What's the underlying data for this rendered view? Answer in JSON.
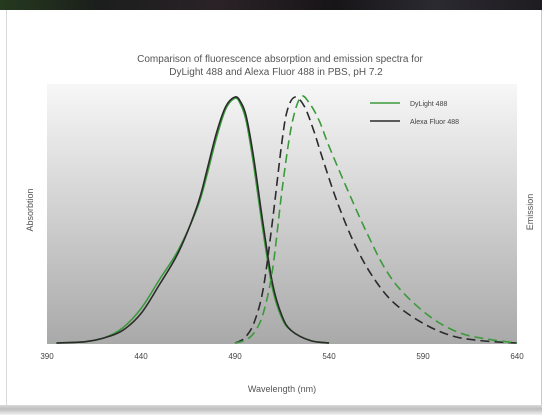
{
  "chart_data": {
    "type": "line",
    "title": "Comparison of fluorescence absorption and emission spectra for",
    "subtitle": "DyLight 488 and Alexa Fluor 488 in PBS, pH 7.2",
    "xlabel": "Wavelength (nm)",
    "ylabel_left": "Absorbtion",
    "ylabel_right": "Emission",
    "xlim": [
      390,
      640
    ],
    "ylim": [
      0,
      1
    ],
    "xticks": [
      "390",
      "440",
      "490",
      "540",
      "590",
      "640"
    ],
    "legend_position": "top-right",
    "grid": false,
    "colors": {
      "dylight": "#3c9a3c",
      "alexa": "#2b2b2b",
      "background_top": "#f7f7f7",
      "background_bottom": "#a9a9a9"
    },
    "series": [
      {
        "name": "DyLight 488",
        "kind": "absorption",
        "style": "solid",
        "x": [
          395,
          410,
          420,
          430,
          440,
          450,
          460,
          470,
          475,
          480,
          485,
          490,
          493,
          496,
          500,
          505,
          510,
          515,
          520,
          530,
          540
        ],
        "y": [
          0.0,
          0.005,
          0.02,
          0.06,
          0.14,
          0.26,
          0.38,
          0.55,
          0.68,
          0.83,
          0.95,
          0.995,
          0.97,
          0.9,
          0.72,
          0.45,
          0.22,
          0.1,
          0.05,
          0.01,
          0.0
        ]
      },
      {
        "name": "Alexa Fluor 488",
        "kind": "absorption",
        "style": "solid",
        "x": [
          395,
          410,
          420,
          430,
          440,
          450,
          460,
          470,
          475,
          480,
          485,
          490,
          493,
          496,
          500,
          505,
          510,
          515,
          520,
          530,
          540
        ],
        "y": [
          0.0,
          0.005,
          0.02,
          0.05,
          0.12,
          0.24,
          0.37,
          0.56,
          0.7,
          0.85,
          0.96,
          1.0,
          0.98,
          0.92,
          0.75,
          0.48,
          0.24,
          0.11,
          0.05,
          0.01,
          0.0
        ]
      },
      {
        "name": "Alexa Fluor 488",
        "kind": "emission",
        "style": "dashed",
        "x": [
          490,
          495,
          500,
          505,
          510,
          515,
          518,
          522,
          527,
          532,
          537,
          545,
          555,
          565,
          575,
          590,
          605,
          620,
          640
        ],
        "y": [
          0.0,
          0.02,
          0.08,
          0.22,
          0.5,
          0.82,
          0.95,
          1.0,
          0.96,
          0.86,
          0.74,
          0.56,
          0.38,
          0.25,
          0.16,
          0.08,
          0.03,
          0.01,
          0.0
        ]
      },
      {
        "name": "DyLight 488",
        "kind": "emission",
        "style": "dashed",
        "x": [
          490,
          495,
          500,
          505,
          510,
          515,
          520,
          525,
          530,
          535,
          540,
          550,
          560,
          570,
          580,
          595,
          610,
          625,
          640
        ],
        "y": [
          0.0,
          0.01,
          0.04,
          0.12,
          0.3,
          0.62,
          0.88,
          1.0,
          0.97,
          0.9,
          0.8,
          0.62,
          0.45,
          0.3,
          0.2,
          0.1,
          0.04,
          0.015,
          0.0
        ]
      }
    ],
    "legend": [
      {
        "label": "DyLight 488",
        "color": "#3c9a3c"
      },
      {
        "label": "Alexa Fluor 488",
        "color": "#2b2b2b"
      }
    ]
  }
}
